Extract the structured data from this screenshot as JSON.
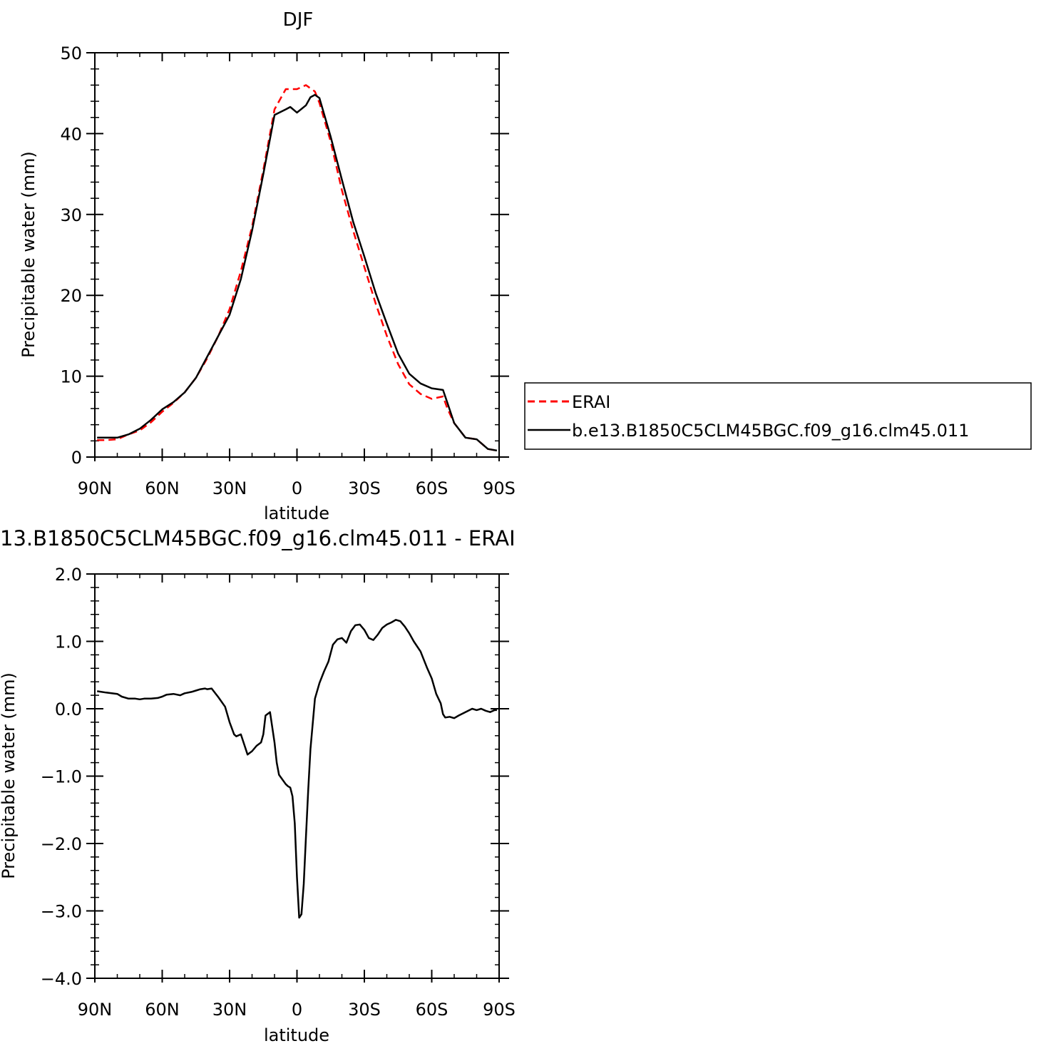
{
  "chart_data": [
    {
      "type": "line",
      "title": "DJF",
      "xlabel": "latitude",
      "ylabel": "Precipitable water (mm)",
      "xlim": [
        90,
        -90
      ],
      "ylim": [
        0,
        50
      ],
      "x_ticks": [
        {
          "value": 90,
          "label": "90N"
        },
        {
          "value": 60,
          "label": "60N"
        },
        {
          "value": 30,
          "label": "30N"
        },
        {
          "value": 0,
          "label": "0"
        },
        {
          "value": -30,
          "label": "30S"
        },
        {
          "value": -60,
          "label": "60S"
        },
        {
          "value": -90,
          "label": "90S"
        }
      ],
      "y_ticks": [
        {
          "value": 0,
          "label": "0"
        },
        {
          "value": 10,
          "label": "10"
        },
        {
          "value": 20,
          "label": "20"
        },
        {
          "value": 30,
          "label": "30"
        },
        {
          "value": 40,
          "label": "40"
        },
        {
          "value": 50,
          "label": "50"
        }
      ],
      "legend_position": "right",
      "series": [
        {
          "name": "ERAI",
          "color": "#ff0000",
          "dash": "dashed",
          "x": [
            89,
            85,
            80,
            75,
            70,
            65,
            60,
            55,
            50,
            45,
            40,
            35,
            30,
            25,
            20,
            15,
            10,
            5,
            3,
            0,
            -4,
            -8,
            -10,
            -15,
            -20,
            -25,
            -30,
            -35,
            -40,
            -45,
            -50,
            -55,
            -60,
            -65,
            -67,
            -70,
            -75,
            -80,
            -85,
            -89
          ],
          "y": [
            2.1,
            2.1,
            2.2,
            2.8,
            3.3,
            4.3,
            5.6,
            6.7,
            8.0,
            9.8,
            12.2,
            15.0,
            18.3,
            23.0,
            28.5,
            35.5,
            43.0,
            45.5,
            45.5,
            45.5,
            46.0,
            45.2,
            43.8,
            39.0,
            33.0,
            28.0,
            23.5,
            19.0,
            15.0,
            11.5,
            9.0,
            7.8,
            7.2,
            7.5,
            6.0,
            4.2,
            2.4,
            2.2,
            1.0,
            0.8
          ]
        },
        {
          "name": "b.e13.B1850C5CLM45BGC.f09_g16.clm45.011",
          "color": "#000000",
          "dash": "solid",
          "x": [
            89,
            85,
            80,
            75,
            70,
            65,
            60,
            55,
            50,
            45,
            40,
            35,
            30,
            25,
            20,
            15,
            10,
            5,
            3,
            0,
            -4,
            -6,
            -8,
            -10,
            -15,
            -20,
            -25,
            -30,
            -35,
            -40,
            -45,
            -50,
            -55,
            -60,
            -65,
            -67,
            -70,
            -75,
            -80,
            -85,
            -89
          ],
          "y": [
            2.4,
            2.4,
            2.4,
            2.8,
            3.5,
            4.6,
            5.9,
            6.8,
            8.0,
            9.8,
            12.4,
            15.0,
            17.6,
            22.0,
            28.0,
            35.0,
            42.3,
            43.0,
            43.3,
            42.6,
            43.5,
            44.5,
            44.8,
            44.4,
            39.6,
            34.3,
            29.1,
            24.8,
            20.3,
            16.5,
            12.8,
            10.3,
            9.1,
            8.5,
            8.3,
            6.7,
            4.2,
            2.4,
            2.2,
            1.0,
            0.8
          ]
        }
      ]
    },
    {
      "type": "line",
      "title": "13.B1850C5CLM45BGC.f09_g16.clm45.011 - ERAI",
      "xlabel": "latitude",
      "ylabel": "Precipitable water (mm)",
      "xlim": [
        90,
        -90
      ],
      "ylim": [
        -4.0,
        2.0
      ],
      "x_ticks": [
        {
          "value": 90,
          "label": "90N"
        },
        {
          "value": 60,
          "label": "60N"
        },
        {
          "value": 30,
          "label": "30N"
        },
        {
          "value": 0,
          "label": "0"
        },
        {
          "value": -30,
          "label": "30S"
        },
        {
          "value": -60,
          "label": "60S"
        },
        {
          "value": -90,
          "label": "90S"
        }
      ],
      "y_ticks": [
        {
          "value": 2.0,
          "label": "2.0"
        },
        {
          "value": 1.0,
          "label": "1.0"
        },
        {
          "value": 0.0,
          "label": "0.0"
        },
        {
          "value": -1.0,
          "label": "−1.0"
        },
        {
          "value": -2.0,
          "label": "−2.0"
        },
        {
          "value": -3.0,
          "label": "−3.0"
        },
        {
          "value": -4.0,
          "label": "−4.0"
        }
      ],
      "series": [
        {
          "color": "#000000",
          "dash": "solid",
          "x": [
            89,
            85,
            80,
            78,
            75,
            72,
            70,
            68,
            65,
            62,
            60,
            58,
            55,
            52,
            50,
            47,
            45,
            43,
            41,
            40,
            38,
            35,
            32,
            30,
            28,
            27,
            25,
            22,
            20,
            18,
            16,
            15,
            14,
            12,
            10,
            9,
            8,
            5,
            4,
            3,
            2,
            1,
            0,
            -1,
            -2,
            -3,
            -4,
            -5,
            -6,
            -8,
            -10,
            -12,
            -14,
            -16,
            -18,
            -20,
            -22,
            -24,
            -26,
            -28,
            -30,
            -32,
            -34,
            -36,
            -38,
            -40,
            -42,
            -44,
            -46,
            -48,
            -50,
            -52,
            -55,
            -58,
            -60,
            -62,
            -64,
            -65,
            -66,
            -68,
            -70,
            -72,
            -75,
            -78,
            -80,
            -82,
            -84,
            -86,
            -88,
            -89
          ],
          "y": [
            0.26,
            0.24,
            0.22,
            0.18,
            0.15,
            0.15,
            0.14,
            0.15,
            0.15,
            0.16,
            0.18,
            0.21,
            0.22,
            0.2,
            0.23,
            0.25,
            0.27,
            0.29,
            0.3,
            0.29,
            0.3,
            0.17,
            0.03,
            -0.2,
            -0.38,
            -0.41,
            -0.38,
            -0.68,
            -0.63,
            -0.55,
            -0.5,
            -0.38,
            -0.1,
            -0.05,
            -0.5,
            -0.8,
            -0.98,
            -1.12,
            -1.15,
            -1.17,
            -1.3,
            -1.7,
            -2.5,
            -3.1,
            -3.05,
            -2.6,
            -1.9,
            -1.2,
            -0.6,
            0.15,
            0.38,
            0.55,
            0.7,
            0.95,
            1.03,
            1.05,
            0.98,
            1.15,
            1.24,
            1.25,
            1.17,
            1.05,
            1.02,
            1.1,
            1.2,
            1.25,
            1.28,
            1.32,
            1.3,
            1.22,
            1.12,
            1.0,
            0.85,
            0.6,
            0.45,
            0.22,
            0.08,
            -0.08,
            -0.13,
            -0.12,
            -0.14,
            -0.1,
            -0.05,
            0.0,
            -0.02,
            0.0,
            -0.03,
            -0.05,
            -0.02,
            -0.02
          ]
        }
      ]
    }
  ]
}
